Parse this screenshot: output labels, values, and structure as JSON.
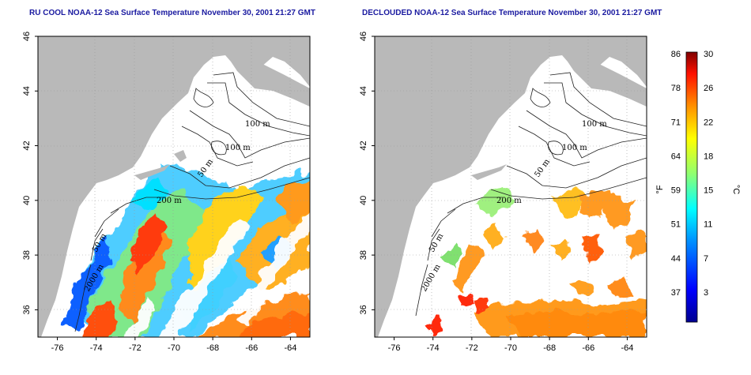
{
  "colors": {
    "land": "#b9b9b9",
    "water_nodata": "#ffffff",
    "title": "#1a1aa0"
  },
  "left_panel": {
    "title": "RU COOL NOAA-12 Sea Surface Temperature November 30, 2001 21:27 GMT"
  },
  "right_panel": {
    "title": "DECLOUDED NOAA-12 Sea Surface Temperature November 30, 2001 21:27 GMT"
  },
  "contour_labels": [
    "100 m",
    "100 m",
    "50 m",
    "200 m",
    "50 m",
    "2000 m"
  ],
  "colorbar": {
    "left_unit": "°F",
    "right_unit": "°C",
    "fahrenheit_ticks": [
      "86",
      "78",
      "71",
      "64",
      "59",
      "51",
      "44",
      "37"
    ],
    "celsius_ticks": [
      "30",
      "26",
      "22",
      "18",
      "15",
      "11",
      "7",
      "3"
    ],
    "colormap": [
      "#00008f",
      "#0000ff",
      "#0080ff",
      "#00ffff",
      "#80ff80",
      "#ffff00",
      "#ff8000",
      "#ff0000",
      "#800000"
    ]
  },
  "chart_data": [
    {
      "type": "heatmap",
      "title": "RU COOL NOAA-12 Sea Surface Temperature November 30, 2001 21:27 GMT",
      "x_ticks": [
        "-76",
        "-74",
        "-72",
        "-70",
        "-68",
        "-66",
        "-64"
      ],
      "y_ticks": [
        "46",
        "44",
        "42",
        "40",
        "38",
        "36"
      ],
      "xlim": [
        -77,
        -63
      ],
      "ylim": [
        35,
        46
      ]
    },
    {
      "type": "heatmap",
      "title": "DECLOUDED NOAA-12 Sea Surface Temperature November 30, 2001 21:27 GMT",
      "x_ticks": [
        "-76",
        "-74",
        "-72",
        "-70",
        "-68",
        "-66",
        "-64"
      ],
      "y_ticks": [
        "46",
        "44",
        "42",
        "40",
        "38",
        "36"
      ],
      "xlim": [
        -77,
        -63
      ],
      "ylim": [
        35,
        46
      ]
    }
  ]
}
